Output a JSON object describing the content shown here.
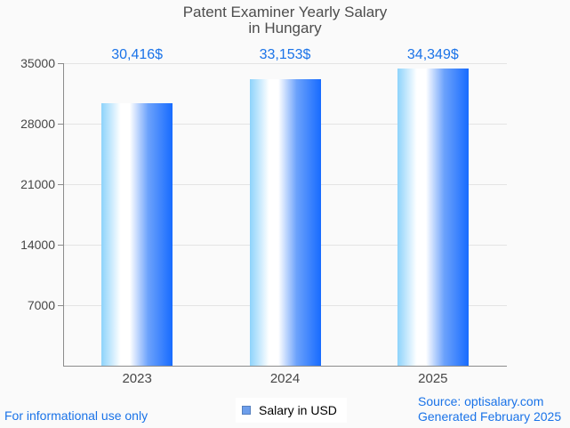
{
  "title": {
    "line1": "Patent Examiner Yearly Salary",
    "line2": "in Hungary"
  },
  "chart_data": {
    "type": "bar",
    "title": "Patent Examiner Yearly Salary in Hungary",
    "categories": [
      "2023",
      "2024",
      "2025"
    ],
    "series": [
      {
        "name": "Salary in USD",
        "values": [
          30416,
          33153,
          34349
        ]
      }
    ],
    "values": [
      30416,
      33153,
      34349
    ],
    "value_labels": [
      "30,416$",
      "33,153$",
      "34,349$"
    ],
    "xlabel": "",
    "ylabel": "",
    "ylim": [
      0,
      35000
    ],
    "yticks": [
      7000,
      14000,
      21000,
      28000,
      35000
    ],
    "grid": true,
    "legend_position": "bottom"
  },
  "legend": {
    "label": "Salary in USD"
  },
  "footer": {
    "disclaimer": "For informational use only",
    "source": "Source: optisalary.com",
    "generated": "Generated February 2025"
  },
  "colors": {
    "background": "#fafafa",
    "title_text": "#4d4d4d",
    "axis_text": "#474747",
    "axis": "#8c8c8c",
    "grid": "#e4e4e4",
    "value_label": "#1a73e8",
    "footer_text": "#1a73e8",
    "legend_bg": "#ffffff",
    "legend_marker": "#6d9eeb",
    "legend_marker_border": "#5580bf",
    "bar_gradient_stops": [
      "#8dd3fb",
      "#ffffff",
      "#6ba1fb",
      "#176bff"
    ]
  }
}
